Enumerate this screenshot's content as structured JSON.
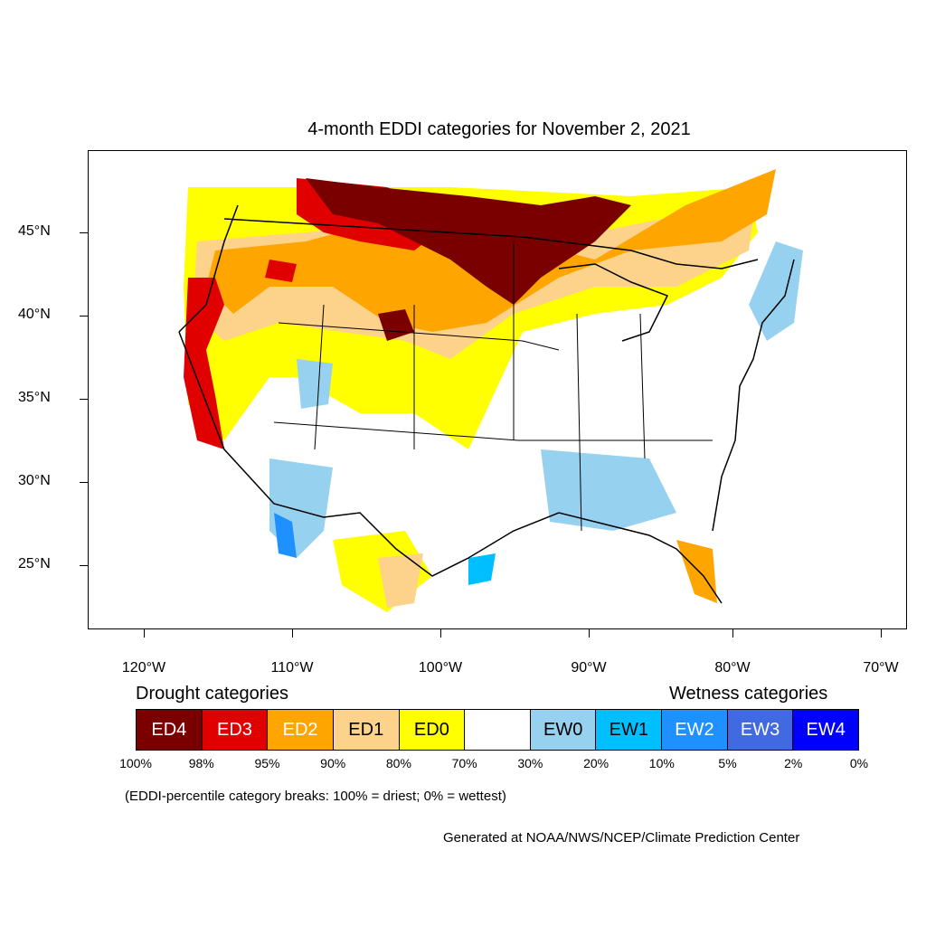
{
  "title": "4-month EDDI categories for November 2, 2021",
  "axes": {
    "y_labels": [
      "45°N",
      "40°N",
      "35°N",
      "30°N",
      "25°N"
    ],
    "x_labels": [
      "120°W",
      "110°W",
      "100°W",
      "90°W",
      "80°W",
      "70°W"
    ]
  },
  "legend": {
    "drought_title": "Drought categories",
    "wetness_title": "Wetness categories",
    "categories": [
      {
        "label": "ED4",
        "color": "#7a0000",
        "text_color": "#ffffff"
      },
      {
        "label": "ED3",
        "color": "#e00000",
        "text_color": "#ffffff"
      },
      {
        "label": "ED2",
        "color": "#ffa500",
        "text_color": "#ffffff"
      },
      {
        "label": "ED1",
        "color": "#fdd28a",
        "text_color": "#000000"
      },
      {
        "label": "ED0",
        "color": "#ffff00",
        "text_color": "#000000"
      },
      {
        "label": "",
        "color": "#ffffff",
        "text_color": "#000000"
      },
      {
        "label": "EW0",
        "color": "#96d2f0",
        "text_color": "#000000"
      },
      {
        "label": "EW1",
        "color": "#00bfff",
        "text_color": "#000000"
      },
      {
        "label": "EW2",
        "color": "#1e90ff",
        "text_color": "#ffffff"
      },
      {
        "label": "EW3",
        "color": "#4169e1",
        "text_color": "#ffffff"
      },
      {
        "label": "EW4",
        "color": "#0000ff",
        "text_color": "#ffffff"
      }
    ],
    "breaks": [
      "100%",
      "98%",
      "95%",
      "90%",
      "80%",
      "70%",
      "30%",
      "20%",
      "10%",
      "5%",
      "2%",
      "0%"
    ]
  },
  "note": "(EDDI-percentile category breaks: 100% = driest; 0% = wettest)",
  "credit": "Generated at NOAA/NWS/NCEP/Climate Prediction Center"
}
